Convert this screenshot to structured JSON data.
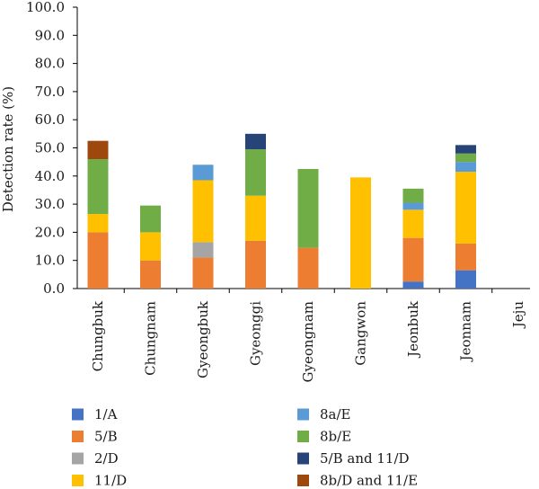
{
  "chart_data": {
    "type": "bar",
    "stacked": true,
    "ylabel": "Detection rate (%)",
    "xlabel": "",
    "ylim": [
      0,
      100
    ],
    "yticks": [
      "0.0",
      "10.0",
      "20.0",
      "30.0",
      "40.0",
      "50.0",
      "60.0",
      "70.0",
      "80.0",
      "90.0",
      "100.0"
    ],
    "categories": [
      "Chungbuk",
      "Chungnam",
      "Gyeongbuk",
      "Gyeonggi",
      "Gyeongnam",
      "Gangwon",
      "Jeonbuk",
      "Jeonnam",
      "Jeju"
    ],
    "series": [
      {
        "name": "1/A",
        "color": "#4472C4",
        "values": [
          0,
          0,
          0,
          0,
          0,
          0,
          2.5,
          6.5,
          0
        ]
      },
      {
        "name": "5/B",
        "color": "#ED7D31",
        "values": [
          20.0,
          10.0,
          11.0,
          17.0,
          14.5,
          0,
          15.5,
          9.5,
          0
        ]
      },
      {
        "name": "2/D",
        "color": "#A5A5A5",
        "values": [
          0,
          0,
          5.5,
          0,
          0,
          0,
          0,
          0,
          0
        ]
      },
      {
        "name": "11/D",
        "color": "#FFC000",
        "values": [
          6.5,
          10.0,
          22.0,
          16.0,
          0,
          39.5,
          10.0,
          25.5,
          0
        ]
      },
      {
        "name": "8a/E",
        "color": "#5B9BD5",
        "values": [
          0,
          0,
          5.5,
          0,
          0,
          0,
          2.5,
          3.5,
          0
        ]
      },
      {
        "name": "8b/E",
        "color": "#70AD47",
        "values": [
          19.5,
          9.5,
          0,
          16.5,
          28.0,
          0,
          5.0,
          3.0,
          0
        ]
      },
      {
        "name": "5/B and 11/D",
        "color": "#264478",
        "values": [
          0,
          0,
          0,
          5.5,
          0,
          0,
          0,
          3.0,
          0
        ]
      },
      {
        "name": "8b/D and 11/E",
        "color": "#9E480E",
        "values": [
          6.5,
          0,
          0,
          0,
          0,
          0,
          0,
          0,
          0
        ]
      }
    ],
    "grid": false,
    "legend_position": "bottom"
  }
}
